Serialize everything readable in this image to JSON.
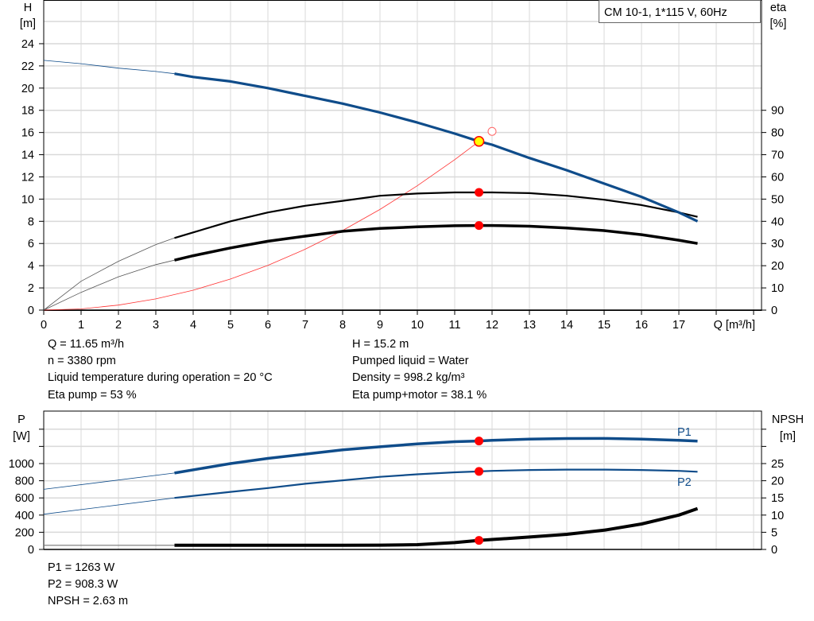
{
  "chart_data": [
    {
      "type": "line",
      "title": "CM 10-1, 1*115 V, 60Hz",
      "xlabel": "Q [m³/h]",
      "ylabel": "H\n[m]",
      "ylabel_left_lines": [
        "H",
        "[m]"
      ],
      "ylabel_right_lines": [
        "eta",
        "[%]"
      ],
      "xlim": [
        0,
        19
      ],
      "ylim_left": [
        0,
        26
      ],
      "ylim_right": [
        0,
        130
      ],
      "x_ticks": [
        "0",
        "1",
        "2",
        "3",
        "4",
        "5",
        "6",
        "7",
        "8",
        "9",
        "10",
        "11",
        "12",
        "13",
        "14",
        "15",
        "16",
        "17"
      ],
      "y_ticks_left": [
        "0",
        "2",
        "4",
        "6",
        "8",
        "10",
        "12",
        "14",
        "16",
        "18",
        "20",
        "22",
        "24"
      ],
      "y_ticks_right": [
        "0",
        "10",
        "20",
        "30",
        "40",
        "50",
        "60",
        "70",
        "80",
        "90"
      ],
      "grid": true,
      "legend_placement": "top-right",
      "series": [
        {
          "id": "H",
          "axis": "left",
          "color": "#0f4c8a",
          "x": [
            0,
            1,
            2,
            3,
            3.5,
            4,
            5,
            6,
            7,
            8,
            9,
            10,
            11,
            11.65,
            12,
            13,
            14,
            15,
            16,
            17,
            17.5
          ],
          "y": [
            22.5,
            22.2,
            21.8,
            21.5,
            21.3,
            21.0,
            20.6,
            20.0,
            19.3,
            18.6,
            17.8,
            16.9,
            15.9,
            15.2,
            14.9,
            13.7,
            12.6,
            11.4,
            10.2,
            8.8,
            8.0
          ]
        },
        {
          "id": "eta-pump",
          "axis": "right",
          "color": "#000000",
          "x": [
            0,
            1,
            2,
            3,
            3.5,
            4,
            5,
            6,
            7,
            8,
            9,
            10,
            11,
            11.65,
            12,
            13,
            14,
            15,
            16,
            17,
            17.5
          ],
          "y": [
            0,
            13,
            22,
            29.5,
            32.5,
            35,
            40,
            44,
            47,
            49.2,
            51.5,
            52.5,
            53,
            53,
            53,
            52.7,
            51.5,
            49.7,
            47.3,
            44,
            42
          ]
        },
        {
          "id": "eta-pump-motor",
          "axis": "right",
          "color": "#000000",
          "x": [
            0,
            1,
            2,
            3,
            3.5,
            4,
            5,
            6,
            7,
            8,
            9,
            10,
            11,
            11.65,
            12,
            13,
            14,
            15,
            16,
            17,
            17.5
          ],
          "y": [
            0,
            8,
            15,
            20.5,
            22.5,
            24.5,
            28,
            31,
            33.3,
            35.5,
            36.8,
            37.5,
            38,
            38.1,
            38.1,
            37.8,
            37,
            35.8,
            34,
            31.5,
            30
          ]
        },
        {
          "id": "system-curve",
          "axis": "left",
          "color": "#ff3333",
          "x": [
            0,
            1,
            2,
            3,
            4,
            5,
            6,
            7,
            8,
            9,
            10,
            11,
            11.65
          ],
          "y": [
            0,
            0.11,
            0.45,
            1.01,
            1.79,
            2.8,
            4.03,
            5.49,
            7.17,
            9.07,
            11.2,
            13.55,
            15.2
          ]
        }
      ],
      "duty_point": {
        "x": 11.65,
        "y": 15.2,
        "eta_pump": 53,
        "eta_pump_motor": 38.1
      },
      "requested_point": {
        "x": 12,
        "y": 16.1
      },
      "colors": {
        "duty_fill": "#ffff00",
        "marker": "#ff0000",
        "grid": "#d9d9d9"
      }
    },
    {
      "type": "line",
      "ylabel_left_lines": [
        "P",
        "[W]"
      ],
      "ylabel_right_lines": [
        "NPSH",
        "[m]"
      ],
      "xlim": [
        0,
        19
      ],
      "ylim_left": [
        0,
        1600
      ],
      "ylim_right": [
        0,
        40
      ],
      "y_ticks_left": [
        "0",
        "200",
        "400",
        "600",
        "800",
        "1000"
      ],
      "y_ticks_right": [
        "0",
        "5",
        "10",
        "15",
        "20",
        "25"
      ],
      "grid": true,
      "series": [
        {
          "id": "P1",
          "name": "P1",
          "axis": "left",
          "color": "#0f4c8a",
          "x": [
            0,
            3.5,
            5,
            6,
            7,
            8,
            9,
            10,
            11,
            11.65,
            12,
            13,
            14,
            15,
            16,
            17,
            17.5
          ],
          "y": [
            700,
            890,
            1000,
            1060,
            1110,
            1160,
            1195,
            1230,
            1255,
            1263,
            1270,
            1285,
            1292,
            1293,
            1285,
            1270,
            1262
          ]
        },
        {
          "id": "P2",
          "name": "P2",
          "axis": "left",
          "color": "#0f4c8a",
          "x": [
            0,
            3.5,
            5,
            6,
            7,
            8,
            9,
            10,
            11,
            11.65,
            12,
            13,
            14,
            15,
            16,
            17,
            17.5
          ],
          "y": [
            410,
            600,
            670,
            715,
            765,
            805,
            845,
            875,
            898,
            908.3,
            915,
            925,
            930,
            930,
            925,
            915,
            905
          ]
        },
        {
          "id": "NPSH",
          "axis": "right",
          "color": "#000000",
          "x": [
            0,
            3.5,
            5,
            6,
            7,
            8,
            9,
            10,
            11,
            11.65,
            12,
            13,
            14,
            15,
            16,
            17,
            17.5
          ],
          "y": [
            1.2,
            1.2,
            1.2,
            1.2,
            1.2,
            1.2,
            1.25,
            1.4,
            2.0,
            2.63,
            2.9,
            3.6,
            4.4,
            5.6,
            7.4,
            10,
            11.9
          ]
        }
      ]
    }
  ],
  "info": {
    "left": [
      "Q = 11.65 m³/h",
      "n = 3380 rpm",
      "Liquid temperature during operation = 20 °C",
      "Eta pump = 53 %"
    ],
    "right": [
      "H = 15.2 m",
      "Pumped liquid = Water",
      "Density = 998.2 kg/m³",
      "Eta pump+motor = 38.1 %"
    ],
    "bottom": [
      "P1 = 1263 W",
      "P2 = 908.3 W",
      "NPSH = 2.63 m"
    ]
  }
}
